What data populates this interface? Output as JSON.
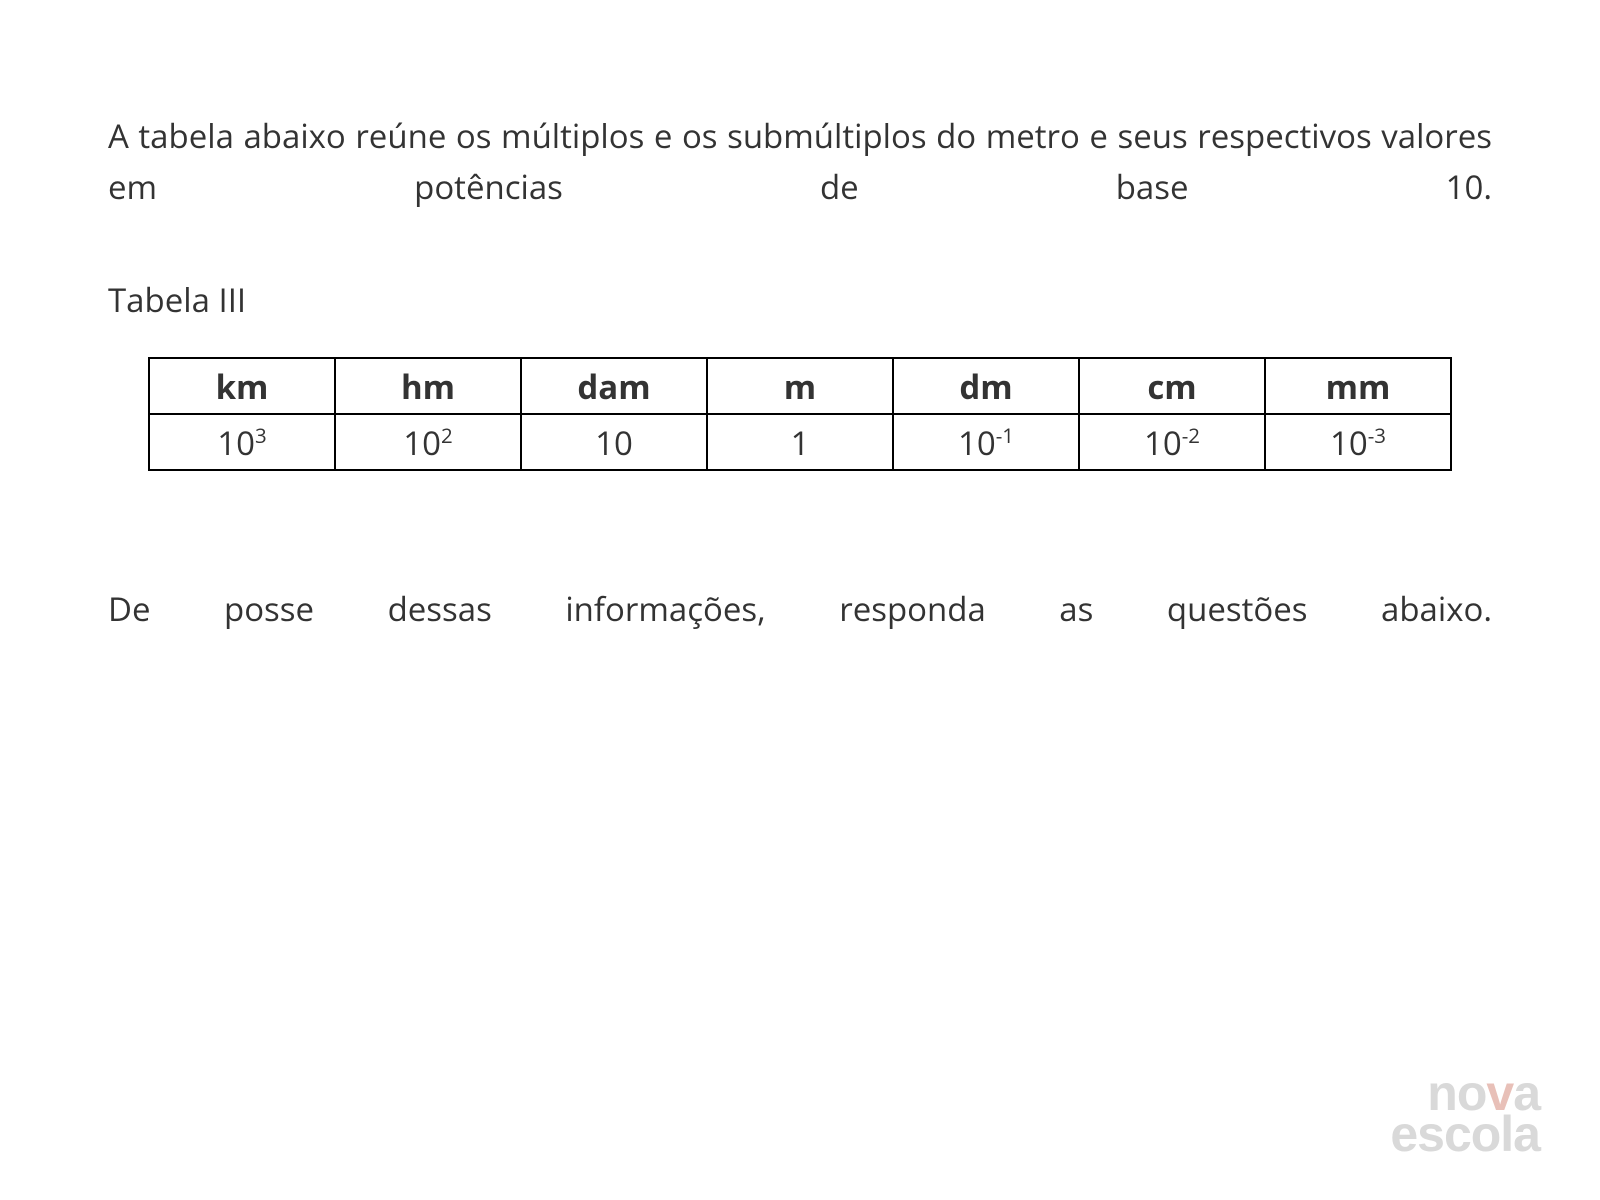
{
  "intro_text": "A tabela abaixo reúne os múltiplos e os submúltiplos do metro e seus respectivos valores em potências de base 10.",
  "table_label": "Tabela III",
  "table": {
    "columns": [
      "km",
      "hm",
      "dam",
      "m",
      "dm",
      "cm",
      "mm"
    ],
    "values_base": [
      "10",
      "10",
      "10",
      "1",
      "10",
      "10",
      "10"
    ],
    "values_exp": [
      "3",
      "2",
      "",
      "",
      "-1",
      "-2",
      "-3"
    ],
    "border_color": "#000000",
    "font_size_pt": 25,
    "header_weight": "700"
  },
  "outro_text": "De posse dessas informações, responda as questões abaixo.",
  "logo": {
    "line1_pre": "no",
    "line1_accent": "v",
    "line1_post": "a",
    "line2": "escola",
    "color_main": "#d9d9d9",
    "color_accent": "#e8c0b8"
  },
  "colors": {
    "background": "#ffffff",
    "text": "#333333"
  }
}
